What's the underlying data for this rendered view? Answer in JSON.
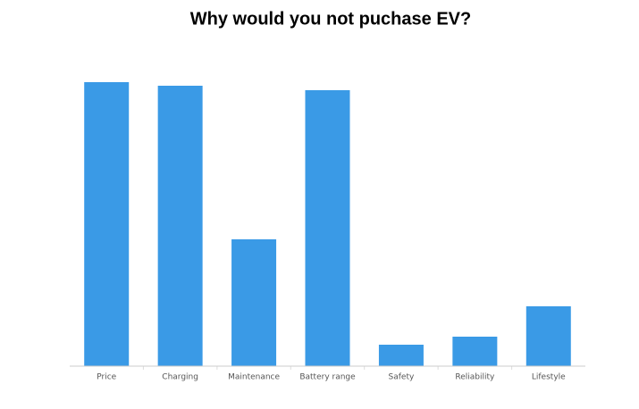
{
  "chart_data": {
    "type": "bar",
    "title": "Why would you not puchase EV?",
    "categories": [
      "Price",
      "Charging",
      "Maintenance",
      "Battery range",
      "Safety",
      "Reliability",
      "Lifestyle"
    ],
    "values": [
      318,
      314,
      142,
      309,
      24,
      33,
      67
    ],
    "color": "#3a9ae6"
  }
}
